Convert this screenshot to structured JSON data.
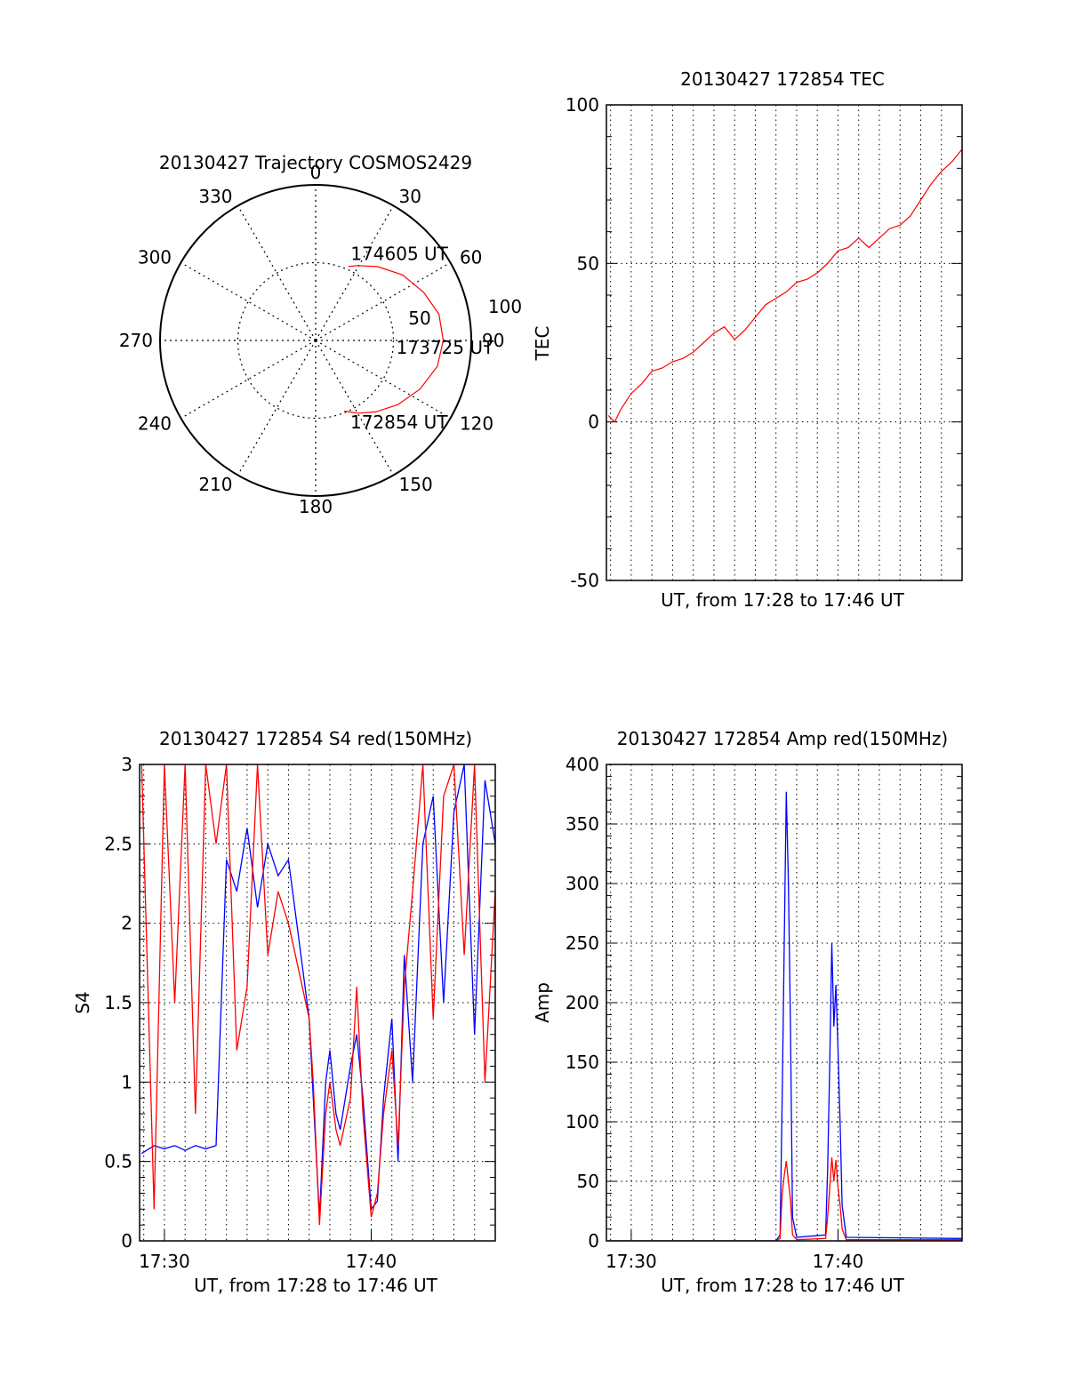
{
  "colors": {
    "red": "#ff0000",
    "blue": "#0000ff",
    "axis": "#000000",
    "grid": "#000000"
  },
  "chart_data": [
    {
      "id": "trajectory",
      "type": "polar",
      "title": "20130427 Trajectory COSMOS2429",
      "angle_labels": [
        "0",
        "30",
        "60",
        "90",
        "120",
        "150",
        "180",
        "210",
        "240",
        "270",
        "300",
        "330"
      ],
      "radius_labels": [
        "50",
        "100"
      ],
      "rmax": 100,
      "grid": true,
      "series": [
        {
          "color": "red",
          "points": [
            {
              "az": 158,
              "r": 49
            },
            {
              "az": 150,
              "r": 54
            },
            {
              "az": 140,
              "r": 60
            },
            {
              "az": 128,
              "r": 67
            },
            {
              "az": 115,
              "r": 74
            },
            {
              "az": 102,
              "r": 80
            },
            {
              "az": 90,
              "r": 82
            },
            {
              "az": 78,
              "r": 81
            },
            {
              "az": 66,
              "r": 76
            },
            {
              "az": 53,
              "r": 70
            },
            {
              "az": 40,
              "r": 62
            },
            {
              "az": 29,
              "r": 55
            },
            {
              "az": 24,
              "r": 52
            }
          ]
        }
      ],
      "annotations": [
        {
          "text": "174605 UT",
          "az": 22,
          "r": 60
        },
        {
          "text": "173725 UT",
          "az": 95,
          "r": 52
        },
        {
          "text": "172854 UT",
          "az": 157,
          "r": 57
        }
      ]
    },
    {
      "id": "tec",
      "type": "line",
      "title": "20130427 172854 TEC",
      "xlabel": "UT, from 17:28 to 17:46 UT",
      "ylabel": "TEC",
      "ylim": [
        -50,
        100
      ],
      "yticks": [
        "-50",
        "0",
        "50",
        "100"
      ],
      "xlim_min": [
        1707.1,
        1754.0
      ],
      "xticks": [],
      "grid": true,
      "series": [
        {
          "color": "red",
          "x": [
            1728.9,
            1729.2,
            1729.5,
            1730.0,
            1730.5,
            1731.0,
            1731.5,
            1732.0,
            1732.5,
            1733.0,
            1733.5,
            1734.0,
            1734.5,
            1735.0,
            1735.5,
            1736.0,
            1736.5,
            1737.0,
            1737.5,
            1738.0,
            1738.5,
            1739.0,
            1739.5,
            1740.0,
            1740.5,
            1741.0,
            1741.5,
            1742.0,
            1742.5,
            1743.0,
            1743.5,
            1744.0,
            1744.5,
            1745.0,
            1745.5,
            1746.0
          ],
          "y": [
            2,
            0,
            4,
            9,
            12,
            16,
            17,
            19,
            20,
            22,
            25,
            28,
            30,
            26,
            29,
            33,
            37,
            39,
            41,
            44,
            45,
            47,
            50,
            54,
            55,
            58,
            55,
            58,
            61,
            62,
            65,
            70,
            75,
            79,
            82,
            86
          ]
        }
      ]
    },
    {
      "id": "s4",
      "type": "line",
      "title": "20130427 172854 S4 red(150MHz)",
      "xlabel": "UT, from 17:28 to 17:46 UT",
      "ylabel": "S4",
      "ylim": [
        0,
        3
      ],
      "yticks": [
        "0",
        "0.5",
        "1",
        "1.5",
        "2",
        "2.5",
        "3"
      ],
      "xticks": [
        "17:30",
        "17:40"
      ],
      "xtick_minutes": [
        1730,
        1740
      ],
      "grid": true,
      "series": [
        {
          "color": "blue",
          "x": [
            1728.9,
            1729.5,
            1730.0,
            1730.5,
            1731.0,
            1731.5,
            1732.0,
            1732.5,
            1733.0,
            1733.5,
            1734.0,
            1734.5,
            1735.0,
            1735.5,
            1736.0,
            1736.5,
            1737.0,
            1737.2,
            1737.5,
            1737.8,
            1738.0,
            1738.3,
            1738.5,
            1739.0,
            1739.3,
            1739.6,
            1740.0,
            1740.3,
            1740.6,
            1741.0,
            1741.3,
            1741.6,
            1742.0,
            1742.5,
            1743.0,
            1743.5,
            1744.0,
            1744.5,
            1745.0,
            1745.5,
            1746.0
          ],
          "y": [
            0.55,
            0.6,
            0.58,
            0.6,
            0.57,
            0.6,
            0.58,
            0.6,
            2.4,
            2.2,
            2.6,
            2.1,
            2.5,
            2.3,
            2.4,
            1.9,
            1.4,
            0.9,
            0.15,
            1.0,
            1.2,
            0.8,
            0.7,
            1.1,
            1.3,
            0.9,
            0.2,
            0.25,
            0.9,
            1.4,
            0.5,
            1.8,
            1.0,
            2.5,
            2.8,
            1.5,
            2.7,
            3.0,
            1.3,
            2.9,
            2.5
          ]
        },
        {
          "color": "red",
          "x": [
            1728.9,
            1729.5,
            1730.0,
            1730.5,
            1731.0,
            1731.5,
            1732.0,
            1732.5,
            1733.0,
            1733.5,
            1734.0,
            1734.5,
            1735.0,
            1735.5,
            1736.0,
            1736.5,
            1737.0,
            1737.2,
            1737.5,
            1737.8,
            1738.0,
            1738.3,
            1738.5,
            1739.0,
            1739.3,
            1739.6,
            1740.0,
            1740.3,
            1740.6,
            1741.0,
            1741.3,
            1741.6,
            1742.0,
            1742.5,
            1743.0,
            1743.5,
            1744.0,
            1744.5,
            1745.0,
            1745.5,
            1746.0
          ],
          "y": [
            3.0,
            0.2,
            3.0,
            1.5,
            3.0,
            0.8,
            3.0,
            2.5,
            3.0,
            1.2,
            1.6,
            3.0,
            1.8,
            2.2,
            2.0,
            1.7,
            1.4,
            1.0,
            0.1,
            0.8,
            1.0,
            0.7,
            0.6,
            0.9,
            1.6,
            0.8,
            0.15,
            0.3,
            0.8,
            1.2,
            0.6,
            1.6,
            2.2,
            3.0,
            1.4,
            2.8,
            3.0,
            1.8,
            3.0,
            1.0,
            2.2
          ]
        }
      ]
    },
    {
      "id": "amp",
      "type": "line",
      "title": "20130427 172854 Amp red(150MHz)",
      "xlabel": "UT, from 17:28 to 17:46 UT",
      "ylabel": "Amp",
      "ylim": [
        0,
        400
      ],
      "yticks": [
        "0",
        "50",
        "100",
        "150",
        "200",
        "250",
        "300",
        "350",
        "400"
      ],
      "xticks": [
        "17:30",
        "17:40"
      ],
      "xtick_minutes": [
        1730,
        1740
      ],
      "grid": true,
      "series": [
        {
          "color": "blue",
          "x": [
            1728.9,
            1737.0,
            1737.2,
            1737.3,
            1737.4,
            1737.5,
            1737.6,
            1737.7,
            1737.8,
            1738.0,
            1739.4,
            1739.5,
            1739.6,
            1739.7,
            1739.8,
            1739.9,
            1740.0,
            1740.1,
            1740.2,
            1740.4,
            1746.0
          ],
          "y": [
            0,
            0,
            5,
            120,
            250,
            377,
            300,
            180,
            20,
            3,
            5,
            60,
            150,
            250,
            180,
            215,
            160,
            100,
            30,
            3,
            2
          ]
        },
        {
          "color": "red",
          "x": [
            1728.9,
            1737.0,
            1737.2,
            1737.3,
            1737.4,
            1737.5,
            1737.6,
            1737.7,
            1737.8,
            1738.0,
            1739.4,
            1739.5,
            1739.6,
            1739.7,
            1739.8,
            1739.9,
            1740.0,
            1740.1,
            1740.2,
            1740.4,
            1746.0
          ],
          "y": [
            0,
            0,
            2,
            40,
            55,
            67,
            50,
            35,
            5,
            1,
            2,
            20,
            45,
            70,
            50,
            68,
            45,
            30,
            10,
            1,
            1
          ]
        }
      ]
    }
  ]
}
